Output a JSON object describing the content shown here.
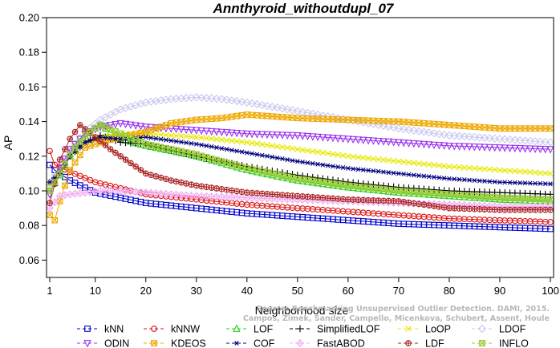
{
  "chart_data": {
    "type": "line",
    "title": "Annthyroid_withoutdupl_07",
    "xlabel": "Neighborhood size",
    "ylabel": "AP",
    "xlim": [
      1,
      100
    ],
    "ylim": [
      0.05,
      0.2
    ],
    "xticks": [
      1,
      10,
      20,
      30,
      40,
      50,
      60,
      70,
      80,
      90,
      100
    ],
    "yticks": [
      0.06,
      0.08,
      0.1,
      0.12,
      0.14,
      0.16,
      0.18,
      0.2
    ],
    "ytick_labels": [
      "0.06",
      "0.08",
      "0.10",
      "0.12",
      "0.14",
      "0.16",
      "0.18",
      "0.20"
    ],
    "legend_position": "bottom",
    "series": [
      {
        "name": "kNN",
        "color": "#0000cc",
        "marker": "square",
        "x": [
          1,
          2,
          5,
          10,
          20,
          30,
          40,
          50,
          60,
          70,
          80,
          90,
          100
        ],
        "values": [
          0.115,
          0.112,
          0.106,
          0.099,
          0.093,
          0.09,
          0.087,
          0.085,
          0.083,
          0.081,
          0.08,
          0.079,
          0.078
        ]
      },
      {
        "name": "kNNW",
        "color": "#dd1111",
        "marker": "circle",
        "x": [
          1,
          2,
          5,
          10,
          20,
          30,
          40,
          50,
          60,
          70,
          80,
          90,
          100
        ],
        "values": [
          0.123,
          0.115,
          0.111,
          0.105,
          0.098,
          0.095,
          0.092,
          0.09,
          0.088,
          0.086,
          0.084,
          0.083,
          0.082
        ]
      },
      {
        "name": "LOF",
        "color": "#22cc22",
        "marker": "triangle",
        "x": [
          1,
          3,
          5,
          8,
          11,
          15,
          20,
          30,
          40,
          50,
          60,
          70,
          80,
          90,
          100
        ],
        "values": [
          0.1,
          0.109,
          0.12,
          0.132,
          0.138,
          0.13,
          0.126,
          0.12,
          0.112,
          0.106,
          0.102,
          0.099,
          0.097,
          0.095,
          0.094
        ]
      },
      {
        "name": "SimplifiedLOF",
        "color": "#000000",
        "marker": "plus",
        "x": [
          1,
          3,
          5,
          8,
          11,
          15,
          20,
          30,
          40,
          50,
          60,
          70,
          80,
          90,
          100
        ],
        "values": [
          0.105,
          0.11,
          0.12,
          0.128,
          0.132,
          0.128,
          0.127,
          0.12,
          0.114,
          0.109,
          0.105,
          0.102,
          0.1,
          0.099,
          0.098
        ]
      },
      {
        "name": "LoOP",
        "color": "#e8e800",
        "marker": "x",
        "x": [
          1,
          3,
          5,
          8,
          11,
          15,
          20,
          30,
          40,
          50,
          60,
          70,
          80,
          90,
          100
        ],
        "values": [
          0.104,
          0.112,
          0.12,
          0.128,
          0.131,
          0.133,
          0.133,
          0.131,
          0.128,
          0.124,
          0.12,
          0.117,
          0.114,
          0.112,
          0.11
        ]
      },
      {
        "name": "LDOF",
        "color": "#c8c8f0",
        "marker": "diamond",
        "x": [
          1,
          3,
          5,
          8,
          11,
          15,
          20,
          25,
          30,
          35,
          40,
          50,
          60,
          70,
          80,
          90,
          100
        ],
        "values": [
          0.104,
          0.113,
          0.124,
          0.134,
          0.141,
          0.147,
          0.151,
          0.153,
          0.154,
          0.153,
          0.151,
          0.146,
          0.141,
          0.136,
          0.132,
          0.13,
          0.128
        ]
      },
      {
        "name": "ODIN",
        "color": "#9933ee",
        "marker": "triangle-down",
        "x": [
          1,
          3,
          5,
          8,
          11,
          15,
          20,
          30,
          40,
          50,
          60,
          70,
          80,
          90,
          100
        ],
        "values": [
          0.098,
          0.113,
          0.124,
          0.133,
          0.137,
          0.139,
          0.137,
          0.135,
          0.133,
          0.132,
          0.13,
          0.128,
          0.126,
          0.125,
          0.124
        ]
      },
      {
        "name": "KDEOS",
        "color": "#eea800",
        "marker": "boxed-x",
        "x": [
          1,
          2,
          3,
          5,
          8,
          11,
          15,
          20,
          25,
          30,
          35,
          40,
          45,
          50,
          60,
          70,
          80,
          90,
          100
        ],
        "values": [
          0.086,
          0.083,
          0.094,
          0.112,
          0.125,
          0.128,
          0.131,
          0.134,
          0.139,
          0.141,
          0.142,
          0.144,
          0.143,
          0.142,
          0.141,
          0.14,
          0.138,
          0.136,
          0.136
        ]
      },
      {
        "name": "COF",
        "color": "#000080",
        "marker": "asterisk",
        "x": [
          1,
          3,
          5,
          8,
          11,
          15,
          20,
          30,
          40,
          50,
          60,
          70,
          80,
          90,
          100
        ],
        "values": [
          0.105,
          0.11,
          0.12,
          0.128,
          0.131,
          0.13,
          0.131,
          0.127,
          0.122,
          0.117,
          0.113,
          0.11,
          0.107,
          0.105,
          0.104
        ]
      },
      {
        "name": "FastABOD",
        "color": "#f0b0f0",
        "marker": "diamond-plus",
        "x": [
          1,
          3,
          5,
          8,
          11,
          15,
          20,
          30,
          40,
          50,
          60,
          70,
          80,
          90,
          100
        ],
        "values": [
          0.09,
          0.097,
          0.098,
          0.099,
          0.1,
          0.1,
          0.099,
          0.097,
          0.096,
          0.095,
          0.094,
          0.093,
          0.092,
          0.091,
          0.091
        ]
      },
      {
        "name": "LDF",
        "color": "#aa2222",
        "marker": "circle-plus",
        "x": [
          1,
          2,
          3,
          5,
          7,
          10,
          13,
          17,
          20,
          25,
          30,
          40,
          50,
          60,
          70,
          80,
          90,
          100
        ],
        "values": [
          0.093,
          0.104,
          0.118,
          0.13,
          0.138,
          0.131,
          0.124,
          0.116,
          0.11,
          0.106,
          0.103,
          0.099,
          0.097,
          0.095,
          0.094,
          0.09,
          0.089,
          0.089
        ]
      },
      {
        "name": "INFLO",
        "color": "#99cc33",
        "marker": "hourglass",
        "x": [
          1,
          3,
          5,
          8,
          11,
          15,
          20,
          30,
          40,
          50,
          60,
          70,
          80,
          90,
          100
        ],
        "values": [
          0.1,
          0.11,
          0.121,
          0.132,
          0.138,
          0.133,
          0.127,
          0.121,
          0.113,
          0.107,
          0.103,
          0.1,
          0.098,
          0.096,
          0.095
        ]
      }
    ],
    "credit_lines": [
      "Source: Benchmarking Unsupervised Outlier Detection. DAMI, 2015.",
      "Campos, Zimek, Sander, Campello, Micenkova, Schubert, Assent, Houle"
    ]
  }
}
